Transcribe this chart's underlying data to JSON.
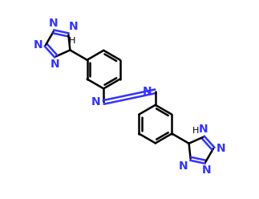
{
  "background_color": "#ffffff",
  "bond_color": "#000000",
  "nitrogen_color": "#3333ff",
  "bond_width": 1.8,
  "font_size_N": 10,
  "font_size_H": 8,
  "figsize": [
    3.23,
    2.48
  ],
  "dpi": 100,
  "xlim": [
    0,
    9.5
  ],
  "ylim": [
    0,
    7.0
  ]
}
